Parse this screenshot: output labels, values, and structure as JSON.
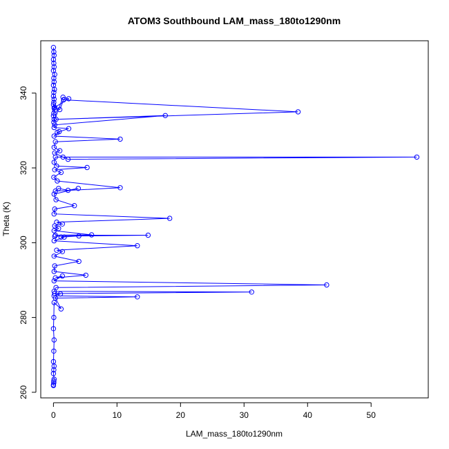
{
  "chart_data": {
    "type": "line",
    "title": "ATOM3 Southbound LAM_mass_180to1290nm",
    "xlabel": "LAM_mass_180to1290nm",
    "ylabel": "Theta (K)",
    "xlim": [
      -2,
      59
    ],
    "ylim": [
      258.5,
      354
    ],
    "xticks": [
      0,
      10,
      20,
      30,
      40,
      50
    ],
    "yticks": [
      260,
      280,
      300,
      320,
      340
    ],
    "grid": false,
    "legend": "none",
    "marker": "open-circle",
    "color": "#0000ff",
    "series": [
      {
        "x": [
          0.0,
          0.05,
          0.1,
          0.0,
          0.05,
          0.1,
          0.0,
          0.2,
          0.05,
          0.1,
          0.0,
          0.15,
          0.05,
          0.0,
          0.1,
          0.05,
          0.0,
          0.1,
          0.2,
          0.05,
          0.0,
          0.1,
          0.05,
          1.5,
          2.4,
          0.2,
          1.0,
          1.6,
          38.5,
          0.4,
          17.6,
          0.2,
          0.1,
          2.4,
          0.6,
          0.9,
          0.1,
          10.5,
          0.3,
          0.1,
          1.0,
          0.2,
          1.5,
          2.3,
          57.2,
          0.3,
          0.1,
          0.5,
          5.3,
          0.2,
          1.2,
          0.05,
          0.6,
          10.5,
          0.3,
          0.8,
          2.3,
          3.9,
          0.1,
          0.4,
          3.3,
          0.2,
          0.1,
          18.3,
          0.5,
          1.4,
          0.2,
          0.8,
          0.1,
          6.0,
          0.3,
          14.9,
          0.2,
          4.0,
          1.2,
          1.7,
          0.1,
          13.2,
          0.5,
          1.4,
          0.1,
          4.0,
          0.2,
          0.1,
          5.1,
          0.3,
          1.4,
          0.1,
          43.0,
          0.4,
          0.1,
          31.2,
          0.2,
          1.1,
          0.1,
          13.2,
          0.3,
          1.2,
          0.1,
          0.05,
          0.0,
          0.1,
          0.05,
          0.0,
          0.1,
          0.05,
          0.0,
          0.1,
          0.05,
          0.0,
          0.05,
          0.0
        ],
        "y": [
          352.2,
          351.0,
          350.1,
          349.0,
          348.0,
          347.0,
          346.0,
          345.0,
          344.0,
          343.0,
          342.1,
          341.0,
          340.2,
          339.2,
          338.4,
          337.5,
          336.9,
          336.0,
          335.4,
          334.6,
          333.9,
          333.0,
          332.2,
          338.9,
          338.5,
          336.2,
          335.6,
          338.2,
          335.0,
          333.0,
          334.0,
          331.5,
          330.8,
          330.5,
          329.5,
          329.7,
          328.5,
          327.7,
          327.0,
          325.5,
          324.6,
          324.0,
          322.9,
          322.3,
          322.9,
          322.9,
          321.5,
          320.5,
          320.1,
          319.5,
          318.8,
          317.5,
          316.5,
          314.7,
          313.8,
          314.5,
          314.0,
          314.5,
          313.0,
          311.5,
          309.9,
          309.0,
          307.7,
          306.5,
          305.5,
          305.0,
          304.5,
          303.8,
          303.2,
          302.1,
          302.0,
          302.0,
          301.7,
          301.8,
          301.5,
          301.5,
          300.5,
          299.2,
          298.0,
          297.6,
          296.4,
          295.0,
          293.8,
          292.3,
          291.3,
          290.6,
          291.1,
          289.8,
          288.7,
          288.0,
          287.0,
          286.8,
          286.4,
          286.3,
          285.8,
          285.5,
          285.2,
          282.3,
          284.0,
          280.0,
          277.0,
          274.0,
          271.0,
          268.2,
          267.0,
          266.0,
          265.0,
          263.5,
          262.5,
          262.0,
          263.0,
          261.8
        ]
      }
    ]
  }
}
